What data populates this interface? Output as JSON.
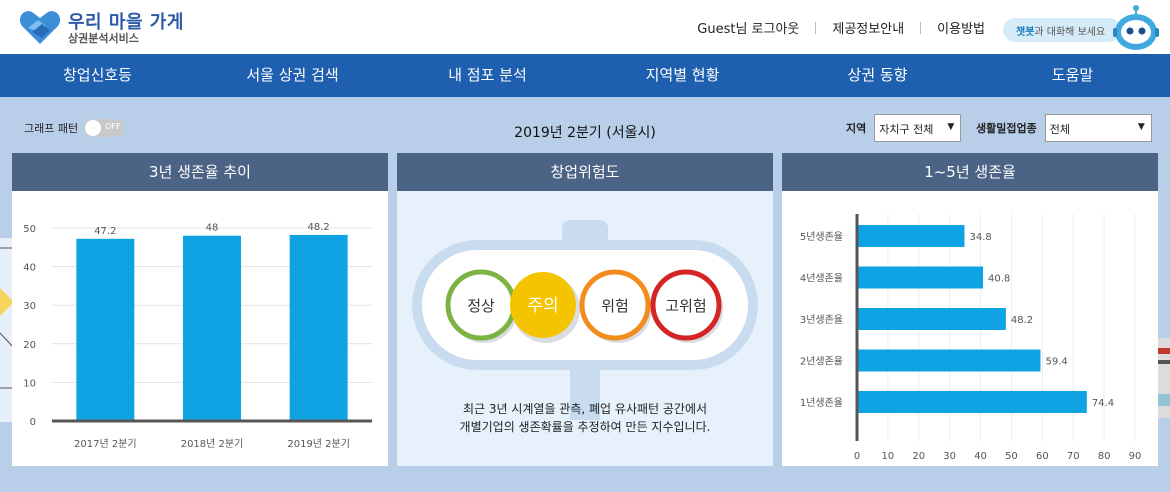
{
  "header": {
    "logo_title": "우리 마을 가게",
    "logo_sub": "상권분석서비스",
    "links": [
      "Guest님 로그아웃",
      "제공정보안내",
      "이용방법"
    ],
    "chat_highlight": "챗봇",
    "chat_rest": "과 대화해 보세요"
  },
  "nav": {
    "items": [
      "창업신호등",
      "서울 상권 검색",
      "내 점포 분석",
      "지역별 현황",
      "상권 동향",
      "도움말"
    ]
  },
  "toolbar": {
    "graph_pattern_label": "그래프 패턴",
    "toggle_state": "OFF",
    "period_title": "2019년 2분기 (서울시)",
    "region_label": "지역",
    "region_value": "자치구 전체",
    "industry_label": "생활밀접업종",
    "industry_value": "전체"
  },
  "panels": {
    "survival_trend_title": "3년 생존율 추이",
    "risk_title": "창업위험도",
    "survival_1_5_title": "1~5년 생존율"
  },
  "risk": {
    "levels": [
      {
        "label": "정상",
        "color": "#7cb342"
      },
      {
        "label": "주의",
        "color": "#f5c400"
      },
      {
        "label": "위험",
        "color": "#f28c1c"
      },
      {
        "label": "고위험",
        "color": "#d42424"
      }
    ],
    "active_level": "주의",
    "description_line1": "최근 3년 시계열을 관측, 폐업 유사패턴 공간에서",
    "description_line2": "개별기업의 생존확률을 추정하여 만든 지수입니다."
  },
  "chart_data": [
    {
      "type": "bar",
      "title": "3년 생존율 추이",
      "categories": [
        "2017년 2분기",
        "2018년 2분기",
        "2019년 2분기"
      ],
      "values": [
        47.2,
        48,
        48.2
      ],
      "data_labels": [
        "47.2",
        "48",
        "48.2"
      ],
      "ylim": [
        0,
        50
      ],
      "yticks": [
        0,
        10,
        20,
        30,
        40,
        50
      ],
      "color": "#0fa3e3"
    },
    {
      "type": "bar",
      "orientation": "horizontal",
      "title": "1~5년 생존율",
      "categories": [
        "5년생존율",
        "4년생존율",
        "3년생존율",
        "2년생존율",
        "1년생존율"
      ],
      "values": [
        34.8,
        40.8,
        48.2,
        59.4,
        74.4
      ],
      "data_labels": [
        "34.8",
        "40.8",
        "48.2",
        "59.4",
        "74.4"
      ],
      "xlim": [
        0,
        90
      ],
      "xticks": [
        0,
        10,
        20,
        30,
        40,
        50,
        60,
        70,
        80,
        90
      ],
      "color": "#0fa3e3"
    }
  ]
}
